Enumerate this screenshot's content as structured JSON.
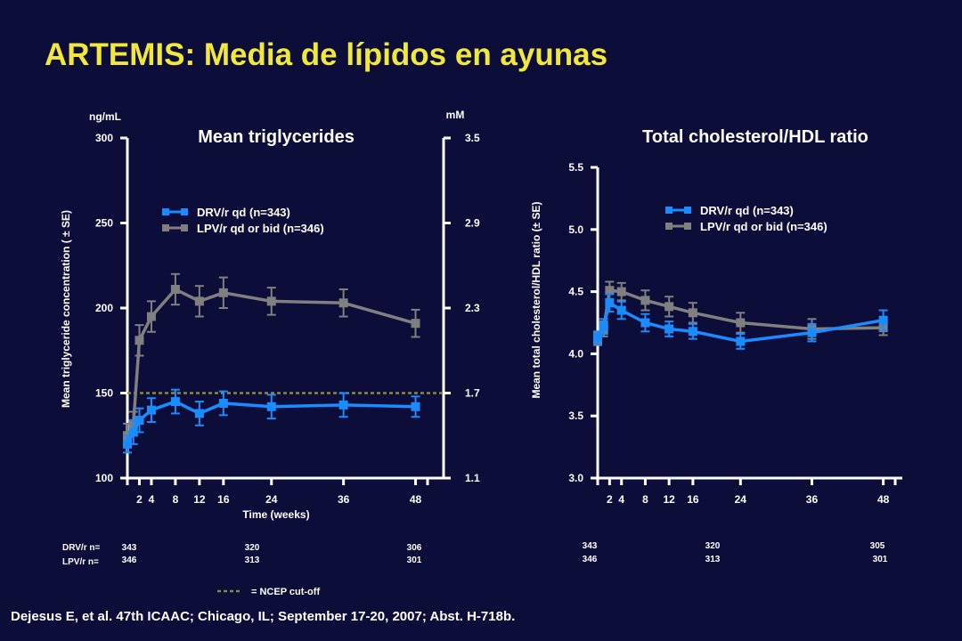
{
  "slide": {
    "title": "ARTEMIS: Media de lípidos en ayunas",
    "citation": "Dejesus E, et al. 47th ICAAC; Chicago, IL; September 17-20, 2007; Abst. H-718b.",
    "ncep_legend": "= NCEP cut-off"
  },
  "colors": {
    "background": "#0d0d3a",
    "title": "#f2e83c",
    "drv": "#1a8cff",
    "lpv": "#808080",
    "ncep": "#8a8a3a",
    "axis": "#ffffff"
  },
  "chart_data": [
    {
      "type": "line",
      "title": "Mean triglycerides",
      "xlabel": "Time (weeks)",
      "ylabel": "Mean triglyceride concentration ( ± SE)",
      "y_unit_left": "ng/mL",
      "y_unit_right": "mM",
      "xlim": [
        0,
        50
      ],
      "x_ticks": [
        2,
        4,
        8,
        12,
        16,
        24,
        36,
        48
      ],
      "ylim": [
        100,
        300
      ],
      "y_ticks": [
        100,
        150,
        200,
        250,
        300
      ],
      "y_ticks_right": [
        "1.1",
        "1.7",
        "2.3",
        "2.9",
        "3.5"
      ],
      "reference_line": {
        "y": 150,
        "label": "NCEP cut-off"
      },
      "legend_position": "upper-left",
      "series": [
        {
          "name": "DRV/r qd (n=343)",
          "color": "#1a8cff",
          "x": [
            0,
            1,
            2,
            4,
            8,
            12,
            16,
            24,
            36,
            48
          ],
          "y": [
            120,
            127,
            134,
            140,
            145,
            138,
            144,
            142,
            143,
            142
          ],
          "err": [
            5,
            7,
            7,
            7,
            7,
            7,
            7,
            7,
            7,
            6
          ]
        },
        {
          "name": "LPV/r qd or bid (n=346)",
          "color": "#808080",
          "x": [
            0,
            1,
            2,
            4,
            8,
            12,
            16,
            24,
            36,
            48
          ],
          "y": [
            125,
            132,
            181,
            195,
            211,
            204,
            209,
            204,
            203,
            191
          ],
          "err": [
            7,
            7,
            9,
            9,
            9,
            9,
            9,
            8,
            8,
            8
          ]
        }
      ],
      "n_table": {
        "rows": [
          {
            "label": "DRV/r n=",
            "values": [
              "343",
              "320",
              "306"
            ]
          },
          {
            "label": "LPV/r n=",
            "values": [
              "346",
              "313",
              "301"
            ]
          }
        ]
      }
    },
    {
      "type": "line",
      "title": "Total cholesterol/HDL ratio",
      "xlabel": "",
      "ylabel": "Mean total cholesterol/HDL ratio (± SE)",
      "xlim": [
        0,
        50
      ],
      "x_ticks": [
        2,
        4,
        8,
        12,
        16,
        24,
        36,
        48
      ],
      "ylim": [
        3.0,
        5.5
      ],
      "y_ticks": [
        "3.0",
        "3.5",
        "4.0",
        "4.5",
        "5.0",
        "5.5"
      ],
      "legend_position": "upper-right",
      "series": [
        {
          "name": "DRV/r qd (n=343)",
          "color": "#1a8cff",
          "x": [
            0,
            1,
            2,
            4,
            8,
            12,
            16,
            24,
            36,
            48
          ],
          "y": [
            4.13,
            4.22,
            4.41,
            4.35,
            4.25,
            4.2,
            4.18,
            4.1,
            4.17,
            4.27
          ],
          "err": [
            0.05,
            0.06,
            0.07,
            0.07,
            0.07,
            0.06,
            0.06,
            0.06,
            0.07,
            0.08
          ]
        },
        {
          "name": "LPV/r qd or bid (n=346)",
          "color": "#808080",
          "x": [
            0,
            1,
            2,
            4,
            8,
            12,
            16,
            24,
            36,
            48
          ],
          "y": [
            4.12,
            4.2,
            4.51,
            4.5,
            4.43,
            4.38,
            4.33,
            4.25,
            4.2,
            4.21
          ],
          "err": [
            0.05,
            0.06,
            0.07,
            0.07,
            0.08,
            0.08,
            0.08,
            0.08,
            0.08,
            0.06
          ]
        }
      ],
      "n_table": {
        "rows": [
          {
            "label": "",
            "values": [
              "343",
              "320",
              "305"
            ]
          },
          {
            "label": "",
            "values": [
              "346",
              "313",
              "301"
            ]
          }
        ]
      }
    }
  ]
}
